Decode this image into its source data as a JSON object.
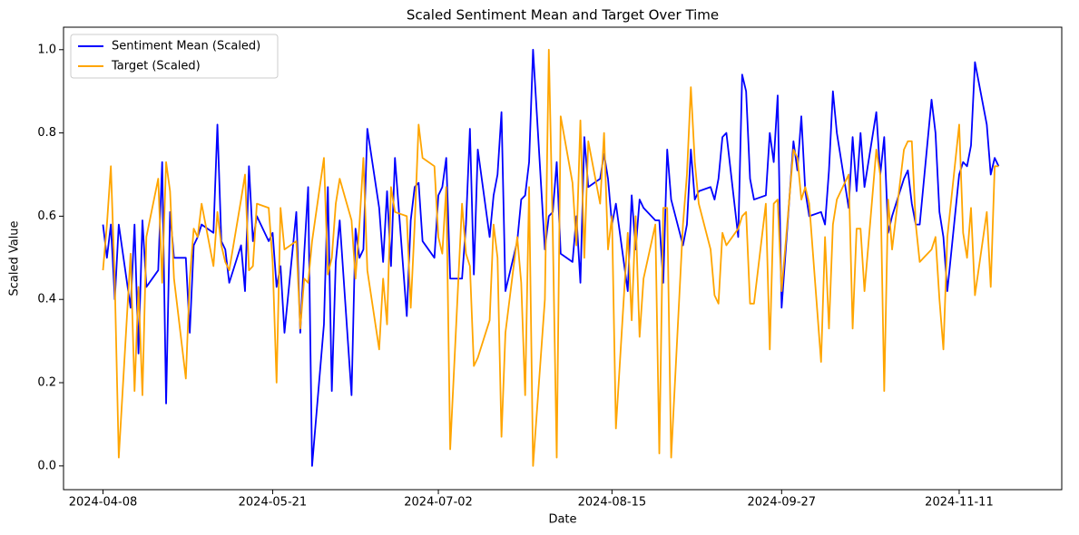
{
  "chart_data": {
    "type": "line",
    "title": "Scaled Sentiment Mean and Target Over Time",
    "x_label": "Date",
    "y_label": "Scaled Value",
    "x": [
      "2024-04-08",
      "2024-04-09",
      "2024-04-10",
      "2024-04-11",
      "2024-04-12",
      "2024-04-15",
      "2024-04-16",
      "2024-04-17",
      "2024-04-18",
      "2024-04-19",
      "2024-04-22",
      "2024-04-23",
      "2024-04-24",
      "2024-04-25",
      "2024-04-26",
      "2024-04-29",
      "2024-04-30",
      "2024-05-01",
      "2024-05-02",
      "2024-05-03",
      "2024-05-06",
      "2024-05-07",
      "2024-05-08",
      "2024-05-09",
      "2024-05-10",
      "2024-05-13",
      "2024-05-14",
      "2024-05-15",
      "2024-05-16",
      "2024-05-17",
      "2024-05-20",
      "2024-05-21",
      "2024-05-22",
      "2024-05-23",
      "2024-05-24",
      "2024-05-27",
      "2024-05-28",
      "2024-05-29",
      "2024-05-30",
      "2024-05-31",
      "2024-06-03",
      "2024-06-04",
      "2024-06-05",
      "2024-06-06",
      "2024-06-07",
      "2024-06-10",
      "2024-06-11",
      "2024-06-12",
      "2024-06-13",
      "2024-06-14",
      "2024-06-17",
      "2024-06-18",
      "2024-06-19",
      "2024-06-20",
      "2024-06-21",
      "2024-06-24",
      "2024-06-25",
      "2024-06-26",
      "2024-06-27",
      "2024-06-28",
      "2024-07-01",
      "2024-07-02",
      "2024-07-03",
      "2024-07-04",
      "2024-07-05",
      "2024-07-08",
      "2024-07-09",
      "2024-07-10",
      "2024-07-11",
      "2024-07-12",
      "2024-07-15",
      "2024-07-16",
      "2024-07-17",
      "2024-07-18",
      "2024-07-19",
      "2024-07-22",
      "2024-07-23",
      "2024-07-24",
      "2024-07-25",
      "2024-07-26",
      "2024-07-29",
      "2024-07-30",
      "2024-07-31",
      "2024-08-01",
      "2024-08-02",
      "2024-08-05",
      "2024-08-06",
      "2024-08-07",
      "2024-08-08",
      "2024-08-09",
      "2024-08-12",
      "2024-08-13",
      "2024-08-14",
      "2024-08-15",
      "2024-08-16",
      "2024-08-19",
      "2024-08-20",
      "2024-08-21",
      "2024-08-22",
      "2024-08-23",
      "2024-08-26",
      "2024-08-27",
      "2024-08-28",
      "2024-08-29",
      "2024-08-30",
      "2024-09-02",
      "2024-09-03",
      "2024-09-04",
      "2024-09-05",
      "2024-09-06",
      "2024-09-09",
      "2024-09-10",
      "2024-09-11",
      "2024-09-12",
      "2024-09-13",
      "2024-09-16",
      "2024-09-17",
      "2024-09-18",
      "2024-09-19",
      "2024-09-20",
      "2024-09-23",
      "2024-09-24",
      "2024-09-25",
      "2024-09-26",
      "2024-09-27",
      "2024-09-30",
      "2024-10-01",
      "2024-10-02",
      "2024-10-03",
      "2024-10-04",
      "2024-10-07",
      "2024-10-08",
      "2024-10-09",
      "2024-10-10",
      "2024-10-11",
      "2024-10-14",
      "2024-10-15",
      "2024-10-16",
      "2024-10-17",
      "2024-10-18",
      "2024-10-21",
      "2024-10-22",
      "2024-10-23",
      "2024-10-24",
      "2024-10-25",
      "2024-10-28",
      "2024-10-29",
      "2024-10-30",
      "2024-10-31",
      "2024-11-01",
      "2024-11-04",
      "2024-11-05",
      "2024-11-06",
      "2024-11-07",
      "2024-11-08",
      "2024-11-11",
      "2024-11-12",
      "2024-11-13",
      "2024-11-14",
      "2024-11-15",
      "2024-11-18",
      "2024-11-19",
      "2024-11-20",
      "2024-11-21"
    ],
    "series": [
      {
        "name": "Sentiment Mean (Scaled)",
        "color": "#0000ff",
        "values": [
          0.58,
          0.5,
          0.58,
          0.4,
          0.58,
          0.38,
          0.58,
          0.27,
          0.59,
          0.43,
          0.47,
          0.73,
          0.15,
          0.61,
          0.5,
          0.5,
          0.32,
          0.53,
          0.55,
          0.58,
          0.56,
          0.82,
          0.54,
          0.52,
          0.44,
          0.53,
          0.42,
          0.72,
          0.54,
          0.6,
          0.54,
          0.56,
          0.43,
          0.48,
          0.32,
          0.61,
          0.32,
          0.51,
          0.67,
          0.0,
          0.34,
          0.67,
          0.18,
          0.49,
          0.59,
          0.17,
          0.57,
          0.5,
          0.52,
          0.81,
          0.62,
          0.49,
          0.66,
          0.48,
          0.74,
          0.36,
          0.59,
          0.67,
          0.68,
          0.54,
          0.5,
          0.65,
          0.67,
          0.74,
          0.45,
          0.45,
          0.58,
          0.81,
          0.46,
          0.76,
          0.55,
          0.65,
          0.7,
          0.85,
          0.42,
          0.54,
          0.64,
          0.65,
          0.73,
          1.0,
          0.52,
          0.6,
          0.61,
          0.73,
          0.51,
          0.49,
          0.6,
          0.44,
          0.79,
          0.67,
          0.69,
          0.75,
          0.69,
          0.58,
          0.63,
          0.42,
          0.65,
          0.52,
          0.64,
          0.62,
          0.59,
          0.59,
          0.44,
          0.76,
          0.64,
          0.53,
          0.58,
          0.76,
          0.64,
          0.66,
          0.67,
          0.64,
          0.69,
          0.79,
          0.8,
          0.55,
          0.94,
          0.9,
          0.69,
          0.64,
          0.65,
          0.8,
          0.73,
          0.89,
          0.38,
          0.78,
          0.71,
          0.84,
          0.66,
          0.6,
          0.61,
          0.58,
          0.71,
          0.9,
          0.8,
          0.62,
          0.79,
          0.66,
          0.8,
          0.67,
          0.85,
          0.7,
          0.79,
          0.56,
          0.6,
          0.69,
          0.71,
          0.63,
          0.58,
          0.58,
          0.88,
          0.8,
          0.61,
          0.55,
          0.42,
          0.7,
          0.73,
          0.72,
          0.77,
          0.97,
          0.82,
          0.7,
          0.74,
          0.72
        ]
      },
      {
        "name": "Target (Scaled)",
        "color": "#ffa500",
        "values": [
          0.47,
          0.58,
          0.72,
          0.44,
          0.02,
          0.51,
          0.18,
          0.43,
          0.17,
          0.55,
          0.69,
          0.44,
          0.73,
          0.66,
          0.45,
          0.21,
          0.45,
          0.57,
          0.55,
          0.63,
          0.48,
          0.61,
          0.53,
          0.49,
          0.47,
          0.64,
          0.7,
          0.47,
          0.48,
          0.63,
          0.62,
          0.49,
          0.2,
          0.62,
          0.52,
          0.54,
          0.33,
          0.45,
          0.44,
          0.54,
          0.74,
          0.46,
          0.5,
          0.63,
          0.69,
          0.59,
          0.45,
          0.58,
          0.74,
          0.47,
          0.28,
          0.45,
          0.34,
          0.67,
          0.61,
          0.6,
          0.38,
          0.58,
          0.82,
          0.74,
          0.72,
          0.55,
          0.51,
          0.67,
          0.04,
          0.63,
          0.51,
          0.48,
          0.24,
          0.26,
          0.35,
          0.58,
          0.5,
          0.07,
          0.32,
          0.55,
          0.44,
          0.17,
          0.67,
          0.0,
          0.4,
          1.0,
          0.56,
          0.02,
          0.84,
          0.68,
          0.53,
          0.83,
          0.5,
          0.78,
          0.63,
          0.8,
          0.52,
          0.6,
          0.09,
          0.56,
          0.35,
          0.6,
          0.31,
          0.45,
          0.58,
          0.03,
          0.62,
          0.62,
          0.02,
          0.58,
          0.7,
          0.91,
          0.73,
          0.63,
          0.52,
          0.41,
          0.39,
          0.56,
          0.53,
          0.57,
          0.6,
          0.61,
          0.39,
          0.39,
          0.63,
          0.28,
          0.63,
          0.64,
          0.42,
          0.76,
          0.74,
          0.64,
          0.67,
          0.63,
          0.25,
          0.55,
          0.33,
          0.58,
          0.64,
          0.7,
          0.33,
          0.57,
          0.57,
          0.42,
          0.76,
          0.7,
          0.18,
          0.64,
          0.52,
          0.76,
          0.78,
          0.78,
          0.58,
          0.49,
          0.52,
          0.55,
          0.4,
          0.28,
          0.55,
          0.82,
          0.56,
          0.5,
          0.62,
          0.41,
          0.61,
          0.43,
          0.72,
          0.72
        ]
      }
    ],
    "xlim": [
      "2024-03-29",
      "2024-12-07"
    ],
    "xticks": [
      "2024-04-08",
      "2024-05-21",
      "2024-07-02",
      "2024-08-15",
      "2024-09-27",
      "2024-11-11"
    ],
    "ylim": [
      -0.057,
      1.054
    ],
    "yticks": [
      {
        "value": 0,
        "label": "0.0"
      },
      0.2,
      0.4,
      0.6,
      0.8,
      {
        "value": 1,
        "label": "1.0"
      }
    ],
    "grid": false,
    "legend": "upper left"
  }
}
